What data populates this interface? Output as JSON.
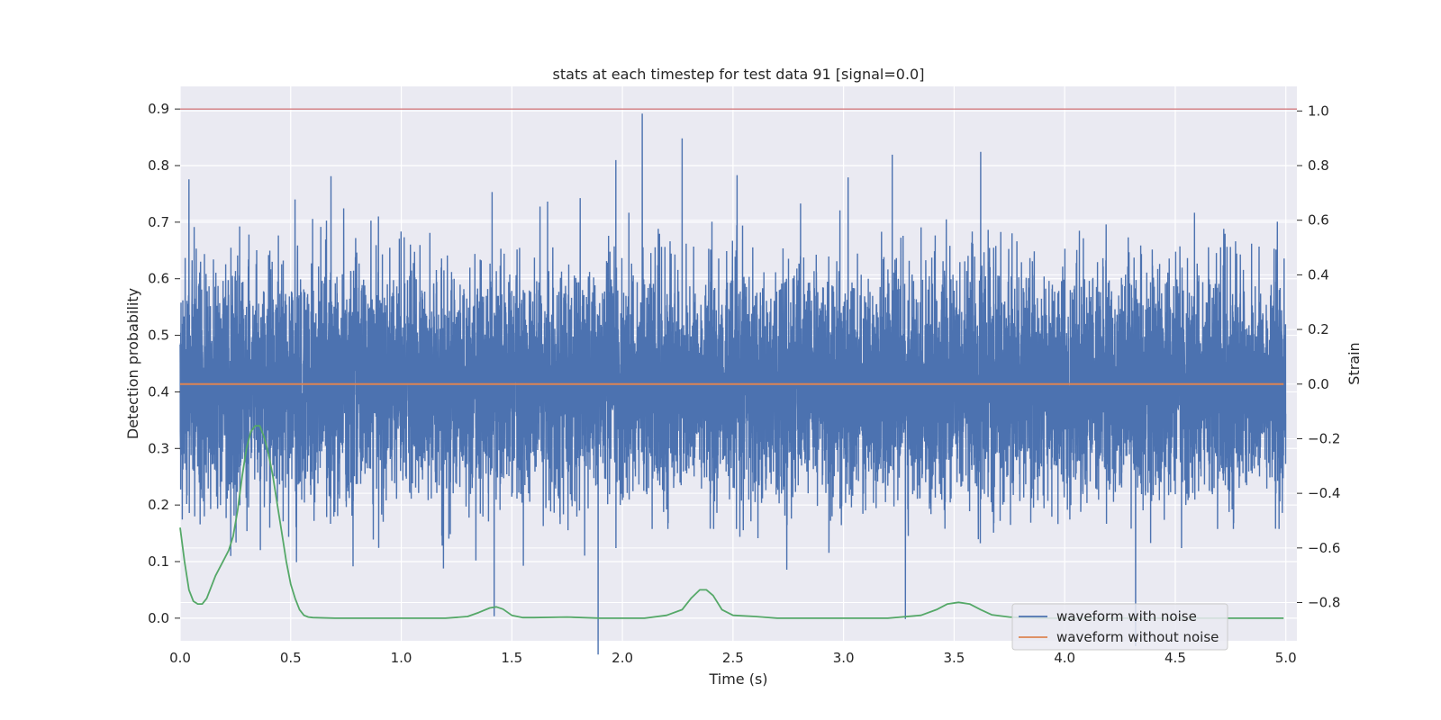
{
  "chart_data": {
    "type": "line",
    "title": "stats at each timestep for test data 91 [signal=0.0]",
    "xlabel": "Time (s)",
    "ylabel_left": "Detection probability",
    "ylabel_right": "Strain",
    "xlim": [
      0.0,
      5.05
    ],
    "ylim_left": [
      -0.04,
      0.94
    ],
    "ylim_right": [
      -0.94,
      1.09
    ],
    "x_ticks": [
      0.0,
      0.5,
      1.0,
      1.5,
      2.0,
      2.5,
      3.0,
      3.5,
      4.0,
      4.5,
      5.0
    ],
    "x_tick_labels": [
      "0.0",
      "0.5",
      "1.0",
      "1.5",
      "2.0",
      "2.5",
      "3.0",
      "3.5",
      "4.0",
      "4.5",
      "5.0"
    ],
    "y_left_ticks": [
      0.0,
      0.1,
      0.2,
      0.3,
      0.4,
      0.5,
      0.6,
      0.7,
      0.8,
      0.9
    ],
    "y_left_tick_labels": [
      "0.0",
      "0.1",
      "0.2",
      "0.3",
      "0.4",
      "0.5",
      "0.6",
      "0.7",
      "0.8",
      "0.9"
    ],
    "y_right_ticks": [
      1.0,
      0.8,
      0.6,
      0.4,
      0.2,
      0.0,
      -0.2,
      -0.4,
      -0.6,
      -0.8
    ],
    "y_right_tick_labels": [
      "1.0",
      "0.8",
      "0.6",
      "0.4",
      "0.2",
      "0.0",
      "−0.2",
      "−0.4",
      "−0.6",
      "−0.8"
    ],
    "grid": true,
    "legend_position": "lower-right",
    "series": [
      {
        "name": "waveform with noise",
        "axis": "right",
        "color": "#4c72b0",
        "kind": "noise",
        "sigma": 0.2,
        "sample_rate": 2048,
        "duration": 5.0,
        "spikes": [
          [
            0.04,
            0.75
          ],
          [
            2.09,
            1.0
          ],
          [
            2.27,
            0.9
          ],
          [
            1.97,
            0.82
          ],
          [
            3.22,
            0.84
          ],
          [
            3.62,
            0.85
          ],
          [
            1.89,
            -1.0
          ],
          [
            1.42,
            -0.85
          ],
          [
            3.28,
            -0.86
          ]
        ]
      },
      {
        "name": "waveform without noise",
        "axis": "right",
        "color": "#dd8452",
        "kind": "constant",
        "value": 0.0
      },
      {
        "axis": "left",
        "color": "#55a868",
        "kind": "curve",
        "x": [
          0.0,
          0.02,
          0.04,
          0.06,
          0.08,
          0.1,
          0.12,
          0.14,
          0.16,
          0.18,
          0.2,
          0.22,
          0.24,
          0.26,
          0.28,
          0.3,
          0.32,
          0.34,
          0.36,
          0.38,
          0.4,
          0.42,
          0.44,
          0.46,
          0.48,
          0.5,
          0.52,
          0.54,
          0.56,
          0.58,
          0.6,
          0.7,
          0.8,
          1.0,
          1.2,
          1.3,
          1.35,
          1.4,
          1.43,
          1.46,
          1.5,
          1.55,
          1.6,
          1.75,
          1.9,
          2.1,
          2.2,
          2.27,
          2.31,
          2.35,
          2.38,
          2.41,
          2.45,
          2.5,
          2.6,
          2.7,
          2.8,
          3.0,
          3.2,
          3.35,
          3.42,
          3.47,
          3.52,
          3.57,
          3.62,
          3.67,
          3.75,
          3.9,
          4.2,
          4.5,
          4.8,
          4.99
        ],
        "y": [
          0.16,
          0.1,
          0.05,
          0.03,
          0.025,
          0.025,
          0.035,
          0.055,
          0.075,
          0.09,
          0.105,
          0.12,
          0.145,
          0.19,
          0.25,
          0.3,
          0.33,
          0.34,
          0.34,
          0.32,
          0.29,
          0.25,
          0.2,
          0.15,
          0.1,
          0.06,
          0.035,
          0.015,
          0.005,
          0.002,
          0.001,
          0.0,
          0.0,
          0.0,
          0.0,
          0.003,
          0.01,
          0.018,
          0.02,
          0.016,
          0.005,
          0.001,
          0.001,
          0.002,
          0.0,
          0.0,
          0.005,
          0.015,
          0.035,
          0.05,
          0.05,
          0.04,
          0.015,
          0.005,
          0.003,
          0.0,
          0.0,
          0.0,
          0.0,
          0.005,
          0.015,
          0.025,
          0.028,
          0.025,
          0.015,
          0.006,
          0.002,
          0.0,
          0.0,
          0.0,
          0.0,
          0.0
        ]
      },
      {
        "axis": "left",
        "color": "#c44e52",
        "kind": "hline",
        "value": 0.9
      }
    ]
  }
}
